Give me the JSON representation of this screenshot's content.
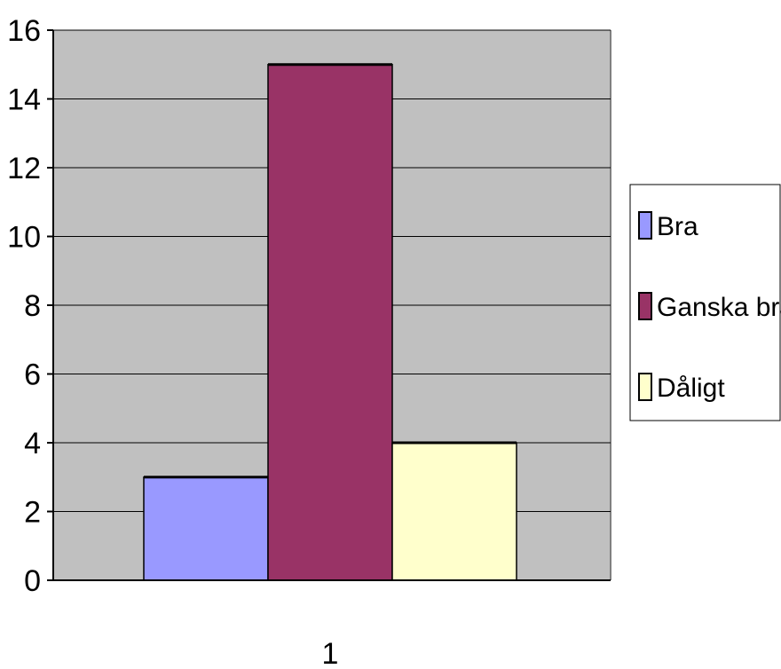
{
  "chart_data": {
    "type": "bar",
    "categories": [
      "1"
    ],
    "series": [
      {
        "name": "Bra",
        "values": [
          3
        ],
        "color": "#9999ff"
      },
      {
        "name": "Ganska bra",
        "values": [
          15
        ],
        "color": "#993366"
      },
      {
        "name": "Dåligt",
        "values": [
          4
        ],
        "color": "#ffffcc"
      }
    ],
    "ylim": [
      0,
      16
    ],
    "ytick_step": 2,
    "yticks": [
      "0",
      "2",
      "4",
      "6",
      "8",
      "10",
      "12",
      "14",
      "16"
    ],
    "grid": true,
    "legend_position": "right",
    "plot_background": "#c0c0c0",
    "title": "",
    "xlabel": "",
    "ylabel": ""
  }
}
